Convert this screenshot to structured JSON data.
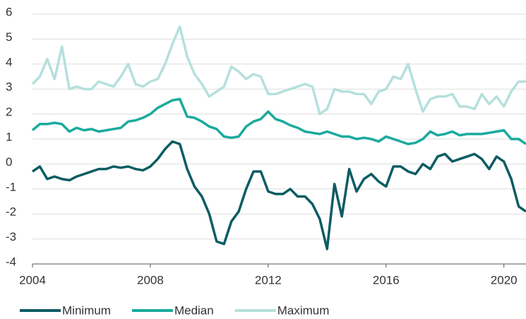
{
  "chart_data": {
    "type": "line",
    "x": [
      2004,
      2004.25,
      2004.5,
      2004.75,
      2005,
      2005.25,
      2005.5,
      2005.75,
      2006,
      2006.25,
      2006.5,
      2006.75,
      2007,
      2007.25,
      2007.5,
      2007.75,
      2008,
      2008.25,
      2008.5,
      2008.75,
      2009,
      2009.25,
      2009.5,
      2009.75,
      2010,
      2010.25,
      2010.5,
      2010.75,
      2011,
      2011.25,
      2011.5,
      2011.75,
      2012,
      2012.25,
      2012.5,
      2012.75,
      2013,
      2013.25,
      2013.5,
      2013.75,
      2014,
      2014.25,
      2014.5,
      2014.75,
      2015,
      2015.25,
      2015.5,
      2015.75,
      2016,
      2016.25,
      2016.5,
      2016.75,
      2017,
      2017.25,
      2017.5,
      2017.75,
      2018,
      2018.25,
      2018.5,
      2018.75,
      2019,
      2019.25,
      2019.5,
      2019.75,
      2020,
      2020.25,
      2020.5,
      2020.75
    ],
    "series": [
      {
        "name": "Minimum",
        "color": "#0d5c63",
        "values": [
          -0.3,
          -0.1,
          -0.6,
          -0.5,
          -0.6,
          -0.65,
          -0.5,
          -0.4,
          -0.3,
          -0.2,
          -0.2,
          -0.1,
          -0.15,
          -0.1,
          -0.2,
          -0.25,
          -0.1,
          0.2,
          0.6,
          0.9,
          0.8,
          -0.2,
          -0.9,
          -1.3,
          -2.0,
          -3.1,
          -3.2,
          -2.3,
          -1.9,
          -1.0,
          -0.3,
          -0.3,
          -1.1,
          -1.2,
          -1.2,
          -1.0,
          -1.3,
          -1.3,
          -1.6,
          -2.2,
          -3.4,
          -0.8,
          -2.1,
          -0.2,
          -1.1,
          -0.6,
          -0.4,
          -0.7,
          -0.9,
          -0.1,
          -0.1,
          -0.3,
          -0.4,
          0.0,
          -0.2,
          0.3,
          0.4,
          0.1,
          0.2,
          0.3,
          0.4,
          0.2,
          -0.2,
          0.3,
          0.1,
          -0.6,
          -1.7,
          -1.9
        ]
      },
      {
        "name": "Median",
        "color": "#1aaa9d",
        "values": [
          1.35,
          1.6,
          1.6,
          1.65,
          1.6,
          1.3,
          1.45,
          1.35,
          1.4,
          1.3,
          1.35,
          1.4,
          1.45,
          1.7,
          1.75,
          1.85,
          2.0,
          2.25,
          2.4,
          2.55,
          2.6,
          1.9,
          1.85,
          1.7,
          1.5,
          1.4,
          1.1,
          1.05,
          1.1,
          1.5,
          1.7,
          1.8,
          2.1,
          1.8,
          1.7,
          1.55,
          1.45,
          1.3,
          1.25,
          1.2,
          1.3,
          1.2,
          1.1,
          1.1,
          1.0,
          1.05,
          1.0,
          0.9,
          1.1,
          1.0,
          0.9,
          0.8,
          0.85,
          1.0,
          1.3,
          1.15,
          1.2,
          1.3,
          1.15,
          1.2,
          1.2,
          1.2,
          1.25,
          1.3,
          1.35,
          1.0,
          1.0,
          0.8
        ]
      },
      {
        "name": "Maximum",
        "color": "#b5e0dc",
        "values": [
          3.2,
          3.5,
          4.2,
          3.4,
          4.7,
          3.0,
          3.1,
          3.0,
          3.0,
          3.3,
          3.2,
          3.1,
          3.5,
          4.0,
          3.2,
          3.1,
          3.3,
          3.4,
          4.0,
          4.8,
          5.5,
          4.3,
          3.6,
          3.2,
          2.7,
          2.9,
          3.1,
          3.9,
          3.7,
          3.4,
          3.6,
          3.5,
          2.8,
          2.8,
          2.9,
          3.0,
          3.1,
          3.2,
          3.1,
          2.0,
          2.2,
          3.0,
          2.9,
          2.9,
          2.8,
          2.8,
          2.4,
          2.9,
          3.0,
          3.5,
          3.4,
          4.0,
          3.0,
          2.1,
          2.6,
          2.7,
          2.7,
          2.8,
          2.3,
          2.3,
          2.2,
          2.8,
          2.4,
          2.7,
          2.3,
          2.9,
          3.3,
          3.3
        ]
      }
    ],
    "xlim": [
      2004,
      2020.75
    ],
    "xticks": [
      2004,
      2008,
      2012,
      2016,
      2020
    ],
    "ylim": [
      -4,
      6
    ],
    "yticks": [
      -4,
      -3,
      -2,
      -1,
      0,
      1,
      2,
      3,
      4,
      5,
      6
    ],
    "grid": true
  }
}
